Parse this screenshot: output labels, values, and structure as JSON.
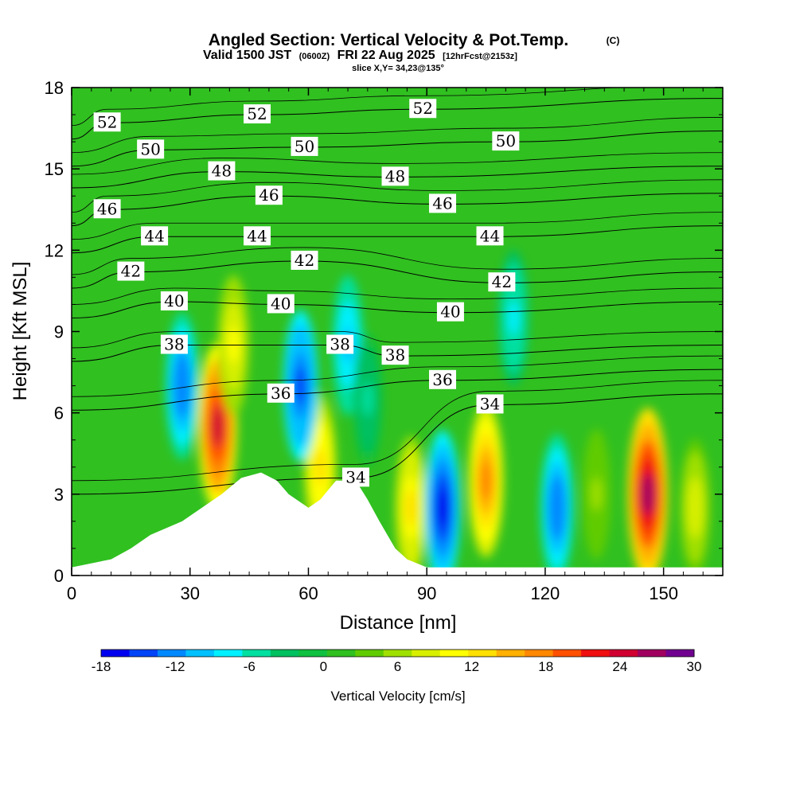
{
  "chart_data": {
    "type": "heatmap",
    "title": "Angled Section: Vertical Velocity & Pot.Temp.",
    "title_suffix": "(C)",
    "subtitle_valid": "Valid 1500 JST",
    "subtitle_z": "(0600Z)",
    "subtitle_date": "FRI 22 Aug 2025",
    "subtitle_fcst": "[12hrFcst@2153z]",
    "slice_label": "slice X,Y= 34,23@135°",
    "xlabel": "Distance [nm]",
    "ylabel": "Height [Kft MSL]",
    "xlim": [
      0,
      165
    ],
    "ylim": [
      0,
      18
    ],
    "xticks": [
      "0",
      "30",
      "60",
      "90",
      "120",
      "150"
    ],
    "yticks": [
      "0",
      "3",
      "6",
      "9",
      "12",
      "15",
      "18"
    ],
    "colorbar": {
      "label": "Vertical Velocity [cm/s]",
      "ticks": [
        "-18",
        "-12",
        "-6",
        "0",
        "6",
        "12",
        "18",
        "24",
        "30"
      ],
      "min": -18,
      "max": 30,
      "colors": [
        "#0000f0",
        "#0044f8",
        "#0088ff",
        "#00c0ff",
        "#00f0ff",
        "#00e0a0",
        "#00c060",
        "#10c040",
        "#30c020",
        "#60cc00",
        "#a0e000",
        "#d8f000",
        "#ffff00",
        "#ffe000",
        "#ffb000",
        "#ff8800",
        "#ff5000",
        "#f01010",
        "#d00030",
        "#a00060",
        "#700090"
      ]
    },
    "series": [
      {
        "name": "Vertical Velocity features (x nm, z kft, cm/s)",
        "points": [
          [
            37,
            5.5,
            24
          ],
          [
            41,
            8.5,
            10
          ],
          [
            146,
            3.0,
            27
          ],
          [
            105,
            3.5,
            17
          ],
          [
            63,
            4.0,
            13
          ],
          [
            86,
            2.5,
            12
          ],
          [
            28,
            7.0,
            -14
          ],
          [
            58,
            7.0,
            -16
          ],
          [
            94,
            2.5,
            -18
          ],
          [
            123,
            2.5,
            -14
          ],
          [
            70,
            8.5,
            -10
          ],
          [
            112,
            9.5,
            -8
          ],
          [
            158,
            2.5,
            9
          ],
          [
            133,
            3.0,
            5
          ],
          [
            75,
            6.5,
            -5
          ]
        ]
      },
      {
        "name": "Terrain (x nm, top kft)",
        "points": [
          [
            0,
            0.3
          ],
          [
            10,
            0.6
          ],
          [
            15,
            1.0
          ],
          [
            20,
            1.5
          ],
          [
            28,
            2.0
          ],
          [
            33,
            2.5
          ],
          [
            38,
            3.0
          ],
          [
            43,
            3.6
          ],
          [
            48,
            3.8
          ],
          [
            52,
            3.5
          ],
          [
            55,
            3.0
          ],
          [
            60,
            2.5
          ],
          [
            63,
            2.8
          ],
          [
            67,
            3.5
          ],
          [
            72,
            3.5
          ],
          [
            75,
            2.8
          ],
          [
            78,
            2.0
          ],
          [
            82,
            1.0
          ],
          [
            85,
            0.6
          ],
          [
            90,
            0.3
          ],
          [
            165,
            0.3
          ]
        ]
      }
    ],
    "isentropes": {
      "levels": [
        34,
        36,
        38,
        40,
        42,
        44,
        46,
        48,
        50,
        52
      ],
      "labels": [
        {
          "text": "52",
          "x": 9,
          "z": 16.7
        },
        {
          "text": "52",
          "x": 47,
          "z": 17.0
        },
        {
          "text": "52",
          "x": 89,
          "z": 17.2
        },
        {
          "text": "50",
          "x": 20,
          "z": 15.7
        },
        {
          "text": "50",
          "x": 59,
          "z": 15.8
        },
        {
          "text": "50",
          "x": 110,
          "z": 16.0
        },
        {
          "text": "48",
          "x": 38,
          "z": 14.9
        },
        {
          "text": "48",
          "x": 82,
          "z": 14.7
        },
        {
          "text": "46",
          "x": 9,
          "z": 13.5
        },
        {
          "text": "46",
          "x": 50,
          "z": 14.0
        },
        {
          "text": "46",
          "x": 94,
          "z": 13.7
        },
        {
          "text": "44",
          "x": 21,
          "z": 12.5
        },
        {
          "text": "44",
          "x": 47,
          "z": 12.5
        },
        {
          "text": "44",
          "x": 106,
          "z": 12.5
        },
        {
          "text": "42",
          "x": 15,
          "z": 11.2
        },
        {
          "text": "42",
          "x": 59,
          "z": 11.6
        },
        {
          "text": "42",
          "x": 109,
          "z": 10.8
        },
        {
          "text": "40",
          "x": 26,
          "z": 10.1
        },
        {
          "text": "40",
          "x": 53,
          "z": 10.0
        },
        {
          "text": "40",
          "x": 96,
          "z": 9.7
        },
        {
          "text": "38",
          "x": 26,
          "z": 8.5
        },
        {
          "text": "38",
          "x": 68,
          "z": 8.5
        },
        {
          "text": "38",
          "x": 82,
          "z": 8.1
        },
        {
          "text": "36",
          "x": 53,
          "z": 6.7
        },
        {
          "text": "36",
          "x": 94,
          "z": 7.2
        },
        {
          "text": "34",
          "x": 106,
          "z": 6.3
        },
        {
          "text": "34",
          "x": 72,
          "z": 3.6
        }
      ]
    }
  }
}
